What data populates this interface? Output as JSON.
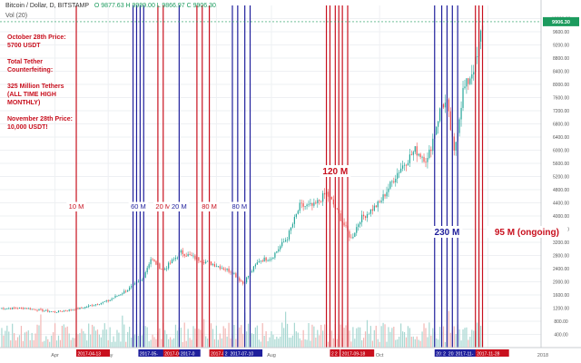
{
  "header": {
    "symbol": "Bitcoin / Dollar, D, BITSTAMP",
    "ohlc": "O 9877.63 H 9999.00 L 9866.97 C 9906.30",
    "volume_label": "Vol (20)"
  },
  "notes": [
    "October 28th Price:",
    "5700 USDT",
    "Total Tether",
    "Counterfeiting:",
    "325 Million Tethers",
    "(ALL TIME HIGH",
    "MONTHLY)",
    "November 28th Price:",
    "10,000 USDT!"
  ],
  "colors": {
    "up": "#26a69a",
    "down": "#ef5350",
    "red_line": "#c8101e",
    "blue_line": "#1f1f9c",
    "price_tag": "#1c9b5e"
  },
  "chart_data": {
    "type": "candlestick",
    "x_range": [
      "2017-03-01",
      "2017-12-31"
    ],
    "ylim": [
      0,
      10400
    ],
    "price_axis": {
      "ticks": [
        400,
        800,
        1200,
        1600,
        2000,
        2400,
        2800,
        3200,
        3600,
        4000,
        4400,
        4800,
        5200,
        5600,
        6000,
        6400,
        6800,
        7200,
        7600,
        8000,
        8400,
        8800,
        9200,
        9600,
        10000
      ],
      "tick_labels": [
        "400.00",
        "800.00",
        "1200.00",
        "1600.00",
        "2000.00",
        "2400.00",
        "2800.00",
        "3200.00",
        "3600.00",
        "4000.00",
        "4400.00",
        "4800.00",
        "5200.00",
        "5600.00",
        "6000.00",
        "6400.00",
        "6800.00",
        "7200.00",
        "7600.00",
        "8000.00",
        "8400.00",
        "8800.00",
        "9200.00",
        "9600.00",
        "10000.00"
      ],
      "last_price": 9906.3,
      "last_price_label": "9906.30"
    },
    "time_axis": [
      {
        "label": "Apr",
        "date": "2017-04-01"
      },
      {
        "label": "May",
        "date": "2017-05-01"
      },
      {
        "label": "Jul",
        "date": "2017-07-01"
      },
      {
        "label": "Aug",
        "date": "2017-08-01"
      },
      {
        "label": "Oct",
        "date": "2017-10-01"
      },
      {
        "label": "Dec",
        "date": "2017-12-01"
      },
      {
        "label": "2018",
        "date": "2018-01-01"
      }
    ],
    "price_path": [
      [
        "2017-03-01",
        1190
      ],
      [
        "2017-03-15",
        1200
      ],
      [
        "2017-04-01",
        1080
      ],
      [
        "2017-04-15",
        1190
      ],
      [
        "2017-05-01",
        1420
      ],
      [
        "2017-05-10",
        1700
      ],
      [
        "2017-05-20",
        2050
      ],
      [
        "2017-05-25",
        2700
      ],
      [
        "2017-06-01",
        2350
      ],
      [
        "2017-06-11",
        2900
      ],
      [
        "2017-06-20",
        2700
      ],
      [
        "2017-07-01",
        2500
      ],
      [
        "2017-07-10",
        2300
      ],
      [
        "2017-07-16",
        1950
      ],
      [
        "2017-07-25",
        2650
      ],
      [
        "2017-08-01",
        2730
      ],
      [
        "2017-08-10",
        3350
      ],
      [
        "2017-08-17",
        4300
      ],
      [
        "2017-08-25",
        4300
      ],
      [
        "2017-09-01",
        4700
      ],
      [
        "2017-09-05",
        4350
      ],
      [
        "2017-09-15",
        3300
      ],
      [
        "2017-09-20",
        3900
      ],
      [
        "2017-10-01",
        4400
      ],
      [
        "2017-10-12",
        5400
      ],
      [
        "2017-10-21",
        6000
      ],
      [
        "2017-10-28",
        5700
      ],
      [
        "2017-11-05",
        7400
      ],
      [
        "2017-11-08",
        7400
      ],
      [
        "2017-11-12",
        5900
      ],
      [
        "2017-11-17",
        7800
      ],
      [
        "2017-11-20",
        8100
      ],
      [
        "2017-11-25",
        8800
      ],
      [
        "2017-11-28",
        9900
      ]
    ],
    "events": [
      {
        "date": "2017-04-13",
        "color": "red",
        "text": "10 M",
        "date_label": "2017-04-13"
      },
      {
        "date": "2017-05-18",
        "color": "blue",
        "text": "60 M",
        "date_label": "2017-05-"
      },
      {
        "date": "2017-06-01",
        "color": "red",
        "text": "20 M",
        "date_label": "2017-06-"
      },
      {
        "date": "2017-06-10",
        "color": "blue",
        "text": "20 M",
        "date_label": "2017-0"
      },
      {
        "date": "2017-06-27",
        "color": "red",
        "text": "80 M",
        "date_label": "2017-06-27"
      },
      {
        "date": "2017-07-14",
        "color": "blue",
        "text": "80 M",
        "date_label": "2017-07-10"
      },
      {
        "date": "2017-09-06",
        "color": "red",
        "text": "120 M",
        "date_label": "2017-09-18"
      },
      {
        "date": "2017-11-08",
        "color": "blue",
        "text": "230 M",
        "date_label": "2017-11-"
      },
      {
        "date": "2017-11-28",
        "color": "red",
        "text": "95 M (ongoing)",
        "date_label": "2017-11-28"
      }
    ],
    "event_lines": [
      {
        "date": "2017-04-13",
        "color": "red"
      },
      {
        "date": "2017-05-15",
        "color": "blue"
      },
      {
        "date": "2017-05-17",
        "color": "blue"
      },
      {
        "date": "2017-05-19",
        "color": "blue"
      },
      {
        "date": "2017-05-21",
        "color": "blue"
      },
      {
        "date": "2017-05-29",
        "color": "red"
      },
      {
        "date": "2017-06-01",
        "color": "red"
      },
      {
        "date": "2017-06-10",
        "color": "blue"
      },
      {
        "date": "2017-06-20",
        "color": "red"
      },
      {
        "date": "2017-06-23",
        "color": "red"
      },
      {
        "date": "2017-06-27",
        "color": "red"
      },
      {
        "date": "2017-07-10",
        "color": "blue"
      },
      {
        "date": "2017-07-13",
        "color": "blue"
      },
      {
        "date": "2017-07-17",
        "color": "blue"
      },
      {
        "date": "2017-07-20",
        "color": "blue"
      },
      {
        "date": "2017-09-01",
        "color": "red"
      },
      {
        "date": "2017-09-03",
        "color": "red"
      },
      {
        "date": "2017-09-06",
        "color": "red"
      },
      {
        "date": "2017-09-08",
        "color": "red"
      },
      {
        "date": "2017-09-10",
        "color": "red"
      },
      {
        "date": "2017-09-13",
        "color": "red"
      },
      {
        "date": "2017-11-01",
        "color": "blue"
      },
      {
        "date": "2017-11-05",
        "color": "blue"
      },
      {
        "date": "2017-11-08",
        "color": "blue"
      },
      {
        "date": "2017-11-11",
        "color": "blue"
      },
      {
        "date": "2017-11-14",
        "color": "blue"
      },
      {
        "date": "2017-11-24",
        "color": "red"
      },
      {
        "date": "2017-11-26",
        "color": "red"
      },
      {
        "date": "2017-11-28",
        "color": "red"
      }
    ],
    "axis_flags": [
      {
        "date": "2017-04-13",
        "color": "red",
        "label": "2017-04-13"
      },
      {
        "date": "2017-05-18",
        "color": "blue",
        "label": "2017-05-"
      },
      {
        "date": "2017-06-01",
        "color": "red",
        "label": "2017-06-"
      },
      {
        "date": "2017-06-10",
        "color": "blue",
        "label": "2017-0"
      },
      {
        "date": "2017-06-27",
        "color": "red",
        "label": "2017-06-27"
      },
      {
        "date": "2017-07-05",
        "color": "blue",
        "label": "2"
      },
      {
        "date": "2017-07-08",
        "color": "blue",
        "label": "2017-07-10"
      },
      {
        "date": "2017-09-03",
        "color": "red",
        "label": "2"
      },
      {
        "date": "2017-09-05",
        "color": "red",
        "label": "2"
      },
      {
        "date": "2017-09-09",
        "color": "red",
        "label": "2017-09-18"
      },
      {
        "date": "2017-11-01",
        "color": "blue",
        "label": "2017-20"
      },
      {
        "date": "2017-11-05",
        "color": "blue",
        "label": "2"
      },
      {
        "date": "2017-11-08",
        "color": "blue",
        "label": "201"
      },
      {
        "date": "2017-11-12",
        "color": "blue",
        "label": "2017-11-"
      },
      {
        "date": "2017-11-24",
        "color": "red",
        "label": "2017-11-28"
      }
    ]
  }
}
